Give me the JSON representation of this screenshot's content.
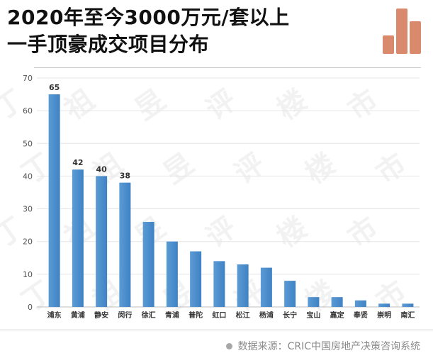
{
  "header": {
    "title_line1": "2020年至今3000万元/套以上",
    "title_line2": "一手顶豪成交项目分布"
  },
  "logo": {
    "name": "bar-chart-logo-icon",
    "color": "#d98a6c"
  },
  "footer": {
    "source": "数据来源：CRIC中国房地产决策咨询系统"
  },
  "chart_data": {
    "type": "bar",
    "categories": [
      "浦东",
      "黄浦",
      "静安",
      "闵行",
      "徐汇",
      "青浦",
      "普陀",
      "虹口",
      "松江",
      "杨浦",
      "长宁",
      "宝山",
      "嘉定",
      "奉贤",
      "崇明",
      "南汇"
    ],
    "values": [
      65,
      42,
      40,
      38,
      26,
      20,
      17,
      14,
      13,
      12,
      8,
      3,
      3,
      2,
      1,
      1
    ],
    "data_labels": [
      "65",
      "42",
      "40",
      "38",
      null,
      null,
      null,
      null,
      null,
      null,
      null,
      null,
      null,
      null,
      null,
      null
    ],
    "yticks": [
      0,
      10,
      20,
      30,
      40,
      50,
      60,
      70
    ],
    "ylim": [
      0,
      70
    ],
    "grid": true,
    "bar_color": "#5b9bd5",
    "bar_color_dark": "#3f82c4"
  },
  "watermark": {
    "chars": [
      "丁",
      "祖",
      "昱",
      "评",
      "楼",
      "市"
    ]
  }
}
